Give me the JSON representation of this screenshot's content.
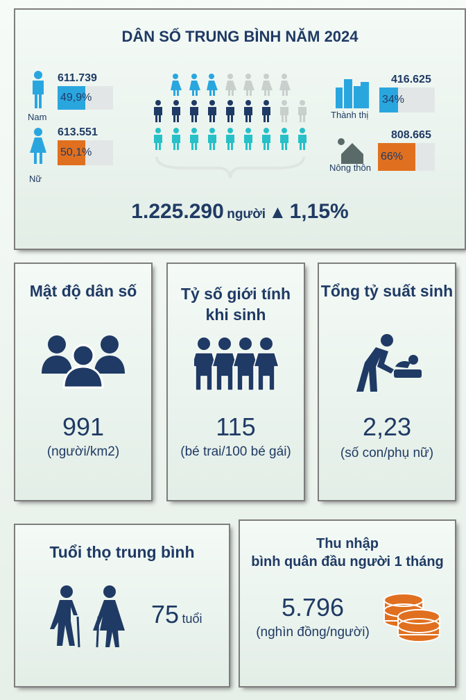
{
  "header": {
    "title": "DÂN SỐ TRUNG BÌNH NĂM 2024"
  },
  "gender": {
    "male": {
      "label": "Nam",
      "value": "611.739",
      "share": 49.9,
      "share_label": "49,9%"
    },
    "female": {
      "label": "Nữ",
      "value": "613.551",
      "share": 50.1,
      "share_label": "50,1%"
    }
  },
  "area": {
    "urban": {
      "label": "Thành thị",
      "value": "416.625",
      "share": 34,
      "share_label": "34%"
    },
    "rural": {
      "label": "Nông thôn",
      "value": "808.665",
      "share": 66,
      "share_label": "66%"
    }
  },
  "total": {
    "value": "1.225.290",
    "unit": "người",
    "growth": "1,15%"
  },
  "cards": [
    {
      "title": [
        "Mật độ dân số"
      ],
      "value": "991",
      "unit": "(người/km2)"
    },
    {
      "title": [
        "Tỷ số giới tính",
        "khi sinh"
      ],
      "value": "115",
      "unit": "(bé trai/100 bé gái)"
    },
    {
      "title": [
        "Tổng tỷ suất sinh"
      ],
      "value": "2,23",
      "unit": "(số con/phụ nữ)"
    },
    {
      "title": [
        "Tuổi thọ trung bình"
      ],
      "value": "75",
      "unit": "tuổi"
    },
    {
      "title": [
        "Thu nhập",
        "bình quân đầu người 1 tháng"
      ],
      "value": "5.796",
      "unit": "(nghìn đồng/người)"
    }
  ]
}
